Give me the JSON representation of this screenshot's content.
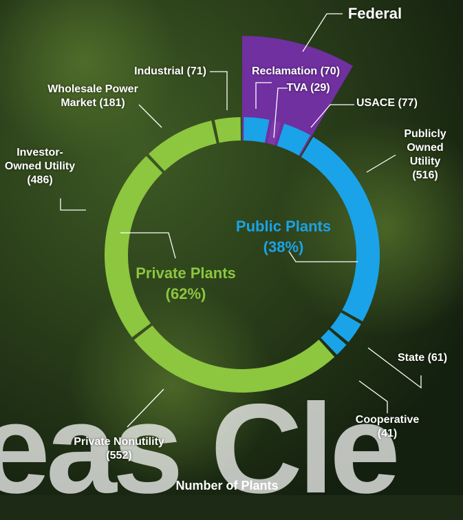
{
  "chart_data": {
    "type": "donut",
    "title": "Number of Plants",
    "categories": [
      "Reclamation (70)",
      "TVA (29)",
      "USACE (77)",
      "Publicly\nOwned\nUtility (516)",
      "State (61)",
      "Cooperative\n(41)",
      "Private Nonutility\n(552)",
      "Investor-\nOwned Utility\n(486)",
      "Wholesale Power\nMarket (181)",
      "Industrial (71)"
    ],
    "values": [
      70,
      29,
      77,
      516,
      61,
      41,
      552,
      486,
      181,
      71
    ],
    "colors": [
      "#1aa3e8",
      "#7a3aa8",
      "#1aa3e8",
      "#1aa3e8",
      "#1aa3e8",
      "#1aa3e8",
      "#8dc63f",
      "#8dc63f",
      "#8dc63f",
      "#8dc63f"
    ],
    "federal": {
      "label": "Federal",
      "color": "#7030a0"
    },
    "groups": [
      {
        "label": "Public Plants\n(38%)",
        "color": "#1aa3e8"
      },
      {
        "label": "Private Plants\n(62%)",
        "color": "#8dc63f"
      }
    ],
    "background_text": "eas Cle"
  }
}
